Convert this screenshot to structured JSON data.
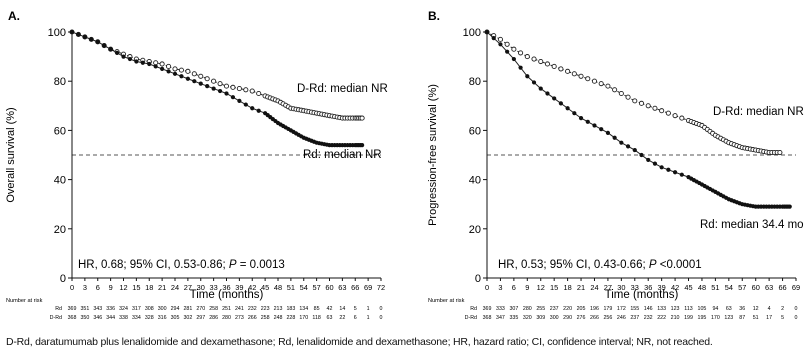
{
  "footnote": "D-Rd, daratumumab plus lenalidomide and dexamethasone; Rd, lenalidomide and dexamethasone; HR, hazard ratio; CI, confidence interval; NR, not reached.",
  "chart_data": [
    {
      "type": "line",
      "panel_label": "A.",
      "xlabel": "Time (months)",
      "ylabel": "Overall survival (%)",
      "xlim": [
        0,
        72
      ],
      "ylim": [
        0,
        100
      ],
      "xticks": [
        0,
        3,
        6,
        9,
        12,
        15,
        18,
        21,
        24,
        27,
        30,
        33,
        36,
        39,
        42,
        45,
        48,
        51,
        54,
        57,
        60,
        63,
        66,
        69,
        72
      ],
      "yticks": [
        0,
        20,
        40,
        60,
        80,
        100
      ],
      "reference_line_y": 50,
      "series": [
        {
          "name": "D-Rd",
          "marker": "open-circle",
          "line": "dotted",
          "x": [
            0,
            3,
            6,
            9,
            12,
            15,
            18,
            21,
            24,
            27,
            30,
            33,
            36,
            39,
            42,
            45,
            48,
            51,
            54,
            57,
            60,
            63,
            66,
            68
          ],
          "y": [
            100,
            98,
            96,
            93,
            91,
            89,
            88,
            87,
            85,
            84,
            82,
            80,
            78,
            77,
            76,
            74,
            72,
            69,
            68,
            67,
            66,
            65,
            65,
            65
          ]
        },
        {
          "name": "Rd",
          "marker": "filled-circle",
          "line": "solid",
          "x": [
            0,
            3,
            6,
            9,
            12,
            15,
            18,
            21,
            24,
            27,
            30,
            33,
            36,
            39,
            42,
            45,
            48,
            51,
            54,
            57,
            60,
            63,
            66,
            68
          ],
          "y": [
            100,
            98,
            96,
            93,
            90,
            88,
            87,
            85,
            83,
            81,
            79,
            77,
            75,
            72,
            69,
            67,
            63,
            60,
            57,
            55,
            54,
            54,
            54,
            54
          ]
        }
      ],
      "annotations": [
        {
          "text": "D-Rd: median NR"
        },
        {
          "text": "Rd: median NR"
        },
        {
          "text_prefix": "HR, 0.68; 95% CI, 0.53-0.86; ",
          "p_symbol": "P",
          "text_suffix": " = 0.0013"
        }
      ],
      "risk_table": {
        "title": "Number at risk",
        "rows": [
          {
            "label": "Rd",
            "values": [
              "369",
              "351",
              "343",
              "336",
              "324",
              "317",
              "308",
              "300",
              "294",
              "281",
              "270",
              "258",
              "251",
              "241",
              "232",
              "223",
              "213",
              "183",
              "134",
              "85",
              "42",
              "14",
              "5",
              "1",
              "0"
            ]
          },
          {
            "label": "D-Rd",
            "values": [
              "368",
              "350",
              "346",
              "344",
              "338",
              "334",
              "328",
              "316",
              "305",
              "302",
              "297",
              "286",
              "280",
              "273",
              "266",
              "258",
              "248",
              "228",
              "170",
              "118",
              "63",
              "22",
              "6",
              "1",
              "0"
            ]
          }
        ]
      }
    },
    {
      "type": "line",
      "panel_label": "B.",
      "xlabel": "Time (months)",
      "ylabel": "Progression-free survival (%)",
      "xlim": [
        0,
        69
      ],
      "ylim": [
        0,
        100
      ],
      "xticks": [
        0,
        3,
        6,
        9,
        12,
        15,
        18,
        21,
        24,
        27,
        30,
        33,
        36,
        39,
        42,
        45,
        48,
        51,
        54,
        57,
        60,
        63,
        66,
        69
      ],
      "yticks": [
        0,
        20,
        40,
        60,
        80,
        100
      ],
      "reference_line_y": 50,
      "series": [
        {
          "name": "D-Rd",
          "marker": "open-circle",
          "line": "dotted",
          "x": [
            0,
            3,
            6,
            9,
            12,
            15,
            18,
            21,
            24,
            27,
            30,
            33,
            36,
            39,
            42,
            45,
            48,
            51,
            54,
            57,
            60,
            63,
            66
          ],
          "y": [
            100,
            97,
            93,
            90,
            88,
            86,
            84,
            82,
            80,
            78,
            75,
            72,
            70,
            68,
            66,
            64,
            62,
            58,
            55,
            53,
            52,
            51,
            51
          ]
        },
        {
          "name": "Rd",
          "marker": "filled-circle",
          "line": "solid",
          "x": [
            0,
            3,
            6,
            9,
            12,
            15,
            18,
            21,
            24,
            27,
            30,
            33,
            36,
            39,
            42,
            45,
            48,
            51,
            54,
            57,
            60,
            63,
            66,
            68
          ],
          "y": [
            100,
            95,
            89,
            82,
            77,
            73,
            69,
            65,
            62,
            59,
            55,
            52,
            48,
            45,
            43,
            41,
            38,
            35,
            32,
            30,
            29,
            29,
            29,
            29
          ]
        }
      ],
      "annotations": [
        {
          "text": "D-Rd: median NR"
        },
        {
          "text": "Rd: median 34.4 mo"
        },
        {
          "text_prefix": "HR, 0.53; 95% CI, 0.43-0.66; ",
          "p_symbol": "P",
          "text_suffix": " <0.0001"
        }
      ],
      "risk_table": {
        "title": "Number at risk",
        "rows": [
          {
            "label": "Rd",
            "values": [
              "369",
              "333",
              "307",
              "280",
              "255",
              "237",
              "220",
              "205",
              "196",
              "179",
              "172",
              "155",
              "146",
              "133",
              "123",
              "113",
              "105",
              "94",
              "63",
              "36",
              "12",
              "4",
              "2",
              "0"
            ]
          },
          {
            "label": "D-Rd",
            "values": [
              "368",
              "347",
              "335",
              "320",
              "309",
              "300",
              "290",
              "276",
              "266",
              "256",
              "246",
              "237",
              "232",
              "222",
              "210",
              "199",
              "195",
              "170",
              "123",
              "87",
              "51",
              "17",
              "5",
              "0"
            ]
          }
        ]
      }
    }
  ]
}
